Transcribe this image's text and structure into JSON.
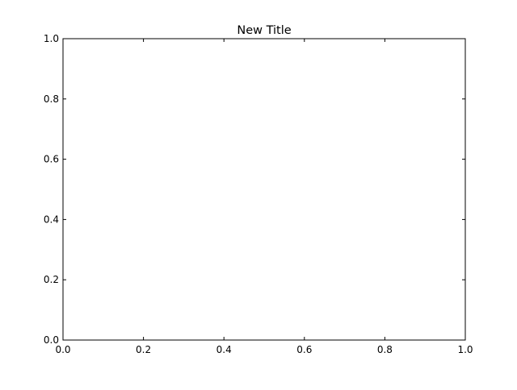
{
  "chart_data": {
    "type": "line",
    "title": "New Title",
    "xlabel": "",
    "ylabel": "",
    "xlim": [
      0.0,
      1.0
    ],
    "ylim": [
      0.0,
      1.0
    ],
    "x_ticks": [
      0.0,
      0.2,
      0.4,
      0.6,
      0.8,
      1.0
    ],
    "y_ticks": [
      0.0,
      0.2,
      0.4,
      0.6,
      0.8,
      1.0
    ],
    "x_tick_labels": [
      "0.0",
      "0.2",
      "0.4",
      "0.6",
      "0.8",
      "1.0"
    ],
    "y_tick_labels": [
      "0.0",
      "0.2",
      "0.4",
      "0.6",
      "0.8",
      "1.0"
    ],
    "grid": false,
    "series": []
  }
}
